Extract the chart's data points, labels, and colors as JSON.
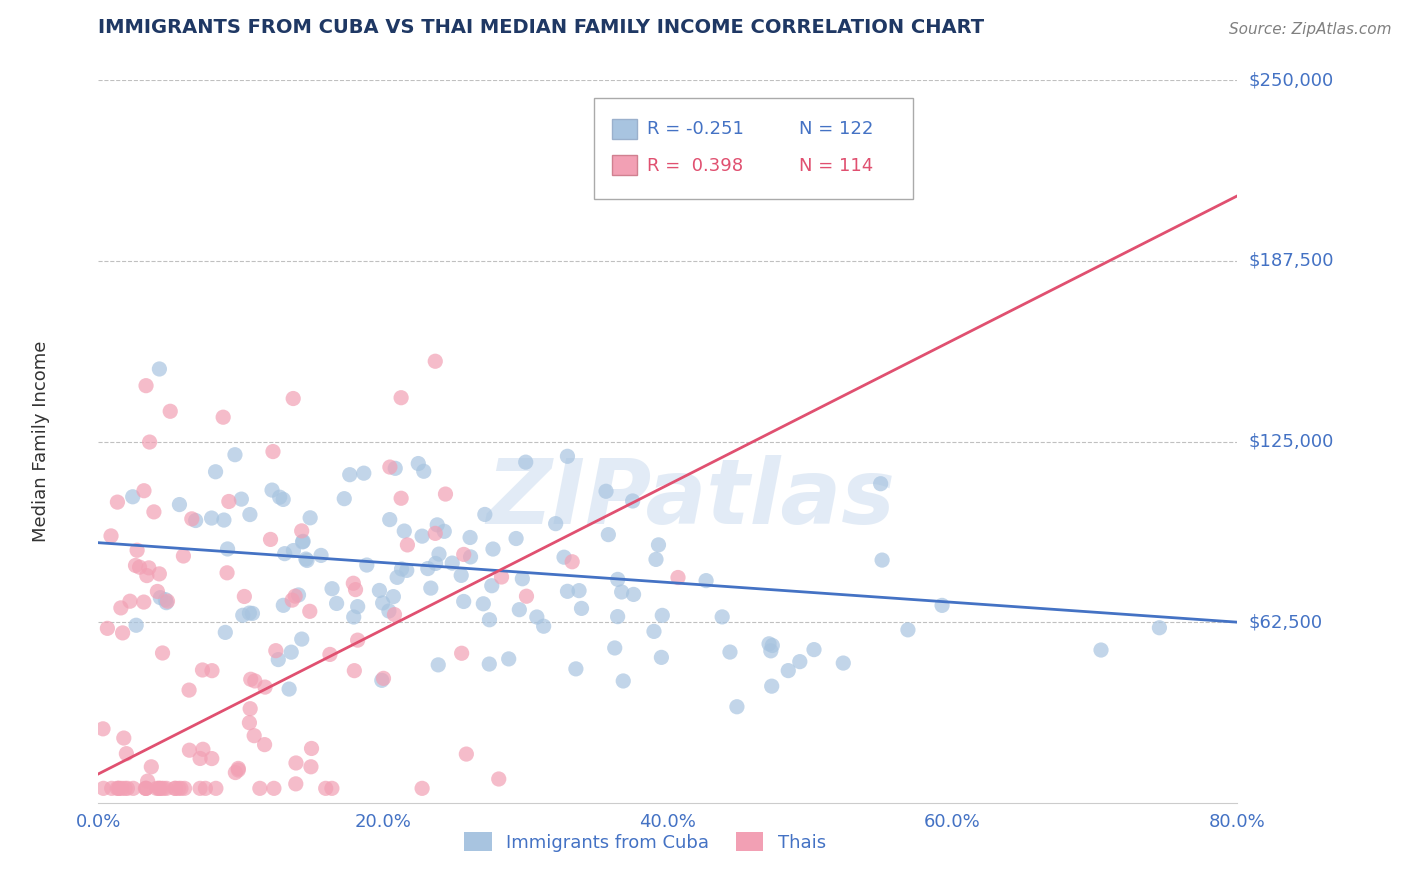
{
  "title": "IMMIGRANTS FROM CUBA VS THAI MEDIAN FAMILY INCOME CORRELATION CHART",
  "source": "Source: ZipAtlas.com",
  "ylabel": "Median Family Income",
  "xlabel_ticks": [
    "0.0%",
    "20.0%",
    "40.0%",
    "60.0%",
    "80.0%"
  ],
  "xlabel_vals": [
    0.0,
    0.2,
    0.4,
    0.6,
    0.8
  ],
  "yticks": [
    0,
    62500,
    125000,
    187500,
    250000
  ],
  "ytick_labels": [
    "",
    "$62,500",
    "$125,000",
    "$187,500",
    "$250,000"
  ],
  "xlim": [
    0.0,
    0.8
  ],
  "ylim": [
    0,
    250000
  ],
  "cuba_R": -0.251,
  "cuba_N": 122,
  "thai_R": 0.398,
  "thai_N": 114,
  "cuba_color": "#a8c4e0",
  "thai_color": "#f2a0b4",
  "cuba_line_color": "#4472c4",
  "thai_line_color": "#e05070",
  "title_color": "#1f3864",
  "label_color": "#4472c4",
  "source_color": "#808080",
  "watermark": "ZIPatlas",
  "background_color": "#ffffff",
  "grid_color": "#c0c0c0",
  "legend_label_cuba": "Immigrants from Cuba",
  "legend_label_thai": "Thais",
  "cuba_seed": 42,
  "thai_seed": 99,
  "cuba_line_x0": 0.0,
  "cuba_line_y0": 90000,
  "cuba_line_x1": 0.8,
  "cuba_line_y1": 62500,
  "thai_line_x0": 0.0,
  "thai_line_y0": 10000,
  "thai_line_x1": 0.8,
  "thai_line_y1": 210000
}
